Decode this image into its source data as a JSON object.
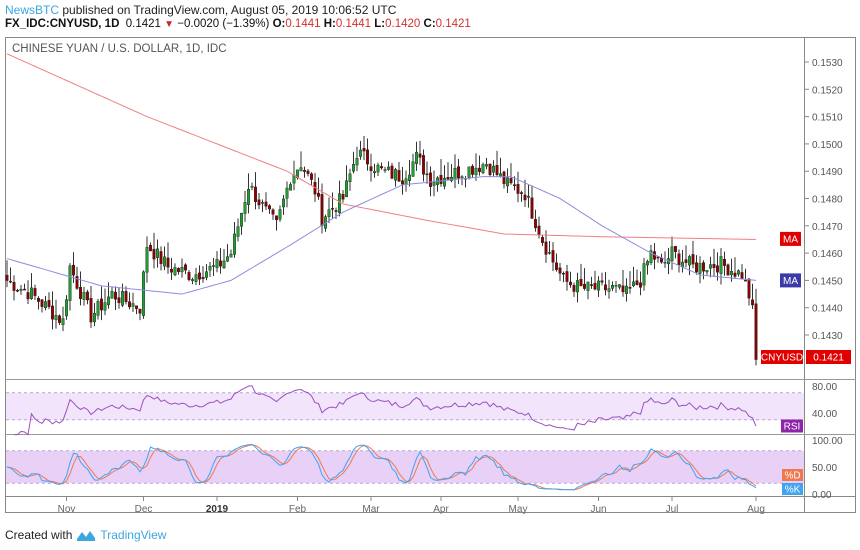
{
  "header": {
    "publisher": "NewsBTC",
    "published_text": "published on TradingView.com, August 05, 2019 10:06:52 UTC",
    "symbol": "FX_IDC:CNYUSD, 1D",
    "last": "0.1421",
    "change": "−0.0020 (−1.39%)",
    "o_label": "O:",
    "o": "0.1441",
    "h_label": "H:",
    "h": "0.1441",
    "l_label": "L:",
    "l": "0.1420",
    "c_label": "C:",
    "c": "0.1421"
  },
  "footer": {
    "created_with": "Created with",
    "brand": "TradingView"
  },
  "colors": {
    "up": "#1e9e2e",
    "down": "#8b0000",
    "ma200": "#f08080",
    "ma50": "#8c8ce0",
    "rsi": "#9b4fc0",
    "k": "#3fa4f2",
    "d": "#f07850",
    "price_label": "#e00000"
  },
  "chart_data": {
    "type": "candlestick",
    "title": "CHINESE YUAN / U.S. DOLLAR, 1D, IDC",
    "ylim": [
      0.1418,
      0.1539
    ],
    "y_ticks": [
      "0.1530",
      "0.1520",
      "0.1510",
      "0.1500",
      "0.1490",
      "0.1480",
      "0.1470",
      "0.1460",
      "0.1450",
      "0.1440",
      "0.1430"
    ],
    "x_ticks": [
      {
        "label": "Nov",
        "day": 17
      },
      {
        "label": "Dec",
        "day": 39
      },
      {
        "label": "2019",
        "day": 60
      },
      {
        "label": "Feb",
        "day": 83
      },
      {
        "label": "Mar",
        "day": 104
      },
      {
        "label": "Apr",
        "day": 124
      },
      {
        "label": "May",
        "day": 146
      },
      {
        "label": "Jun",
        "day": 169
      },
      {
        "label": "Jul",
        "day": 190
      },
      {
        "label": "Aug",
        "day": 214
      }
    ],
    "total_days": 215,
    "close_keypoints": [
      [
        0,
        0.145
      ],
      [
        7,
        0.1445
      ],
      [
        16,
        0.1435
      ],
      [
        18,
        0.1455
      ],
      [
        24,
        0.1437
      ],
      [
        30,
        0.1445
      ],
      [
        38,
        0.144
      ],
      [
        40,
        0.1463
      ],
      [
        46,
        0.1455
      ],
      [
        53,
        0.1452
      ],
      [
        60,
        0.1455
      ],
      [
        64,
        0.146
      ],
      [
        69,
        0.1485
      ],
      [
        74,
        0.1475
      ],
      [
        77,
        0.147
      ],
      [
        81,
        0.1488
      ],
      [
        84,
        0.1493
      ],
      [
        88,
        0.1483
      ],
      [
        90,
        0.1473
      ],
      [
        96,
        0.148
      ],
      [
        100,
        0.1497
      ],
      [
        107,
        0.149
      ],
      [
        113,
        0.1488
      ],
      [
        117,
        0.1495
      ],
      [
        121,
        0.1487
      ],
      [
        130,
        0.149
      ],
      [
        137,
        0.1493
      ],
      [
        143,
        0.1485
      ],
      [
        148,
        0.1482
      ],
      [
        153,
        0.1465
      ],
      [
        156,
        0.1457
      ],
      [
        159,
        0.145
      ],
      [
        164,
        0.1447
      ],
      [
        173,
        0.1447
      ],
      [
        177,
        0.1445
      ],
      [
        181,
        0.145
      ],
      [
        184,
        0.146
      ],
      [
        187,
        0.1455
      ],
      [
        190,
        0.146
      ],
      [
        196,
        0.1455
      ],
      [
        204,
        0.1456
      ],
      [
        210,
        0.1452
      ],
      [
        213,
        0.1441
      ],
      [
        214,
        0.1421
      ]
    ],
    "ma200_keypoints": [
      [
        0,
        0.1533
      ],
      [
        40,
        0.151
      ],
      [
        80,
        0.149
      ],
      [
        96,
        0.1478
      ],
      [
        120,
        0.1472
      ],
      [
        142,
        0.1467
      ],
      [
        170,
        0.1466
      ],
      [
        214,
        0.1465
      ]
    ],
    "ma50_keypoints": [
      [
        0,
        0.1458
      ],
      [
        27,
        0.1448
      ],
      [
        50,
        0.1445
      ],
      [
        64,
        0.145
      ],
      [
        81,
        0.1463
      ],
      [
        96,
        0.1475
      ],
      [
        113,
        0.1485
      ],
      [
        136,
        0.1488
      ],
      [
        144,
        0.1488
      ],
      [
        158,
        0.148
      ],
      [
        170,
        0.147
      ],
      [
        184,
        0.146
      ],
      [
        198,
        0.1452
      ],
      [
        214,
        0.145
      ]
    ],
    "labels": {
      "ma_red": "MA",
      "ma_blue": "MA",
      "price": "CNYUSD",
      "price_value": "0.1421"
    },
    "rsi": {
      "label": "RSI",
      "ticks": [
        "80.00",
        "40.00"
      ],
      "band": [
        30,
        70
      ]
    },
    "stoch": {
      "label_d": "%D",
      "label_k": "%K",
      "ticks": [
        "100.00",
        "50.00",
        "0.00"
      ],
      "band": [
        20,
        80
      ]
    }
  }
}
